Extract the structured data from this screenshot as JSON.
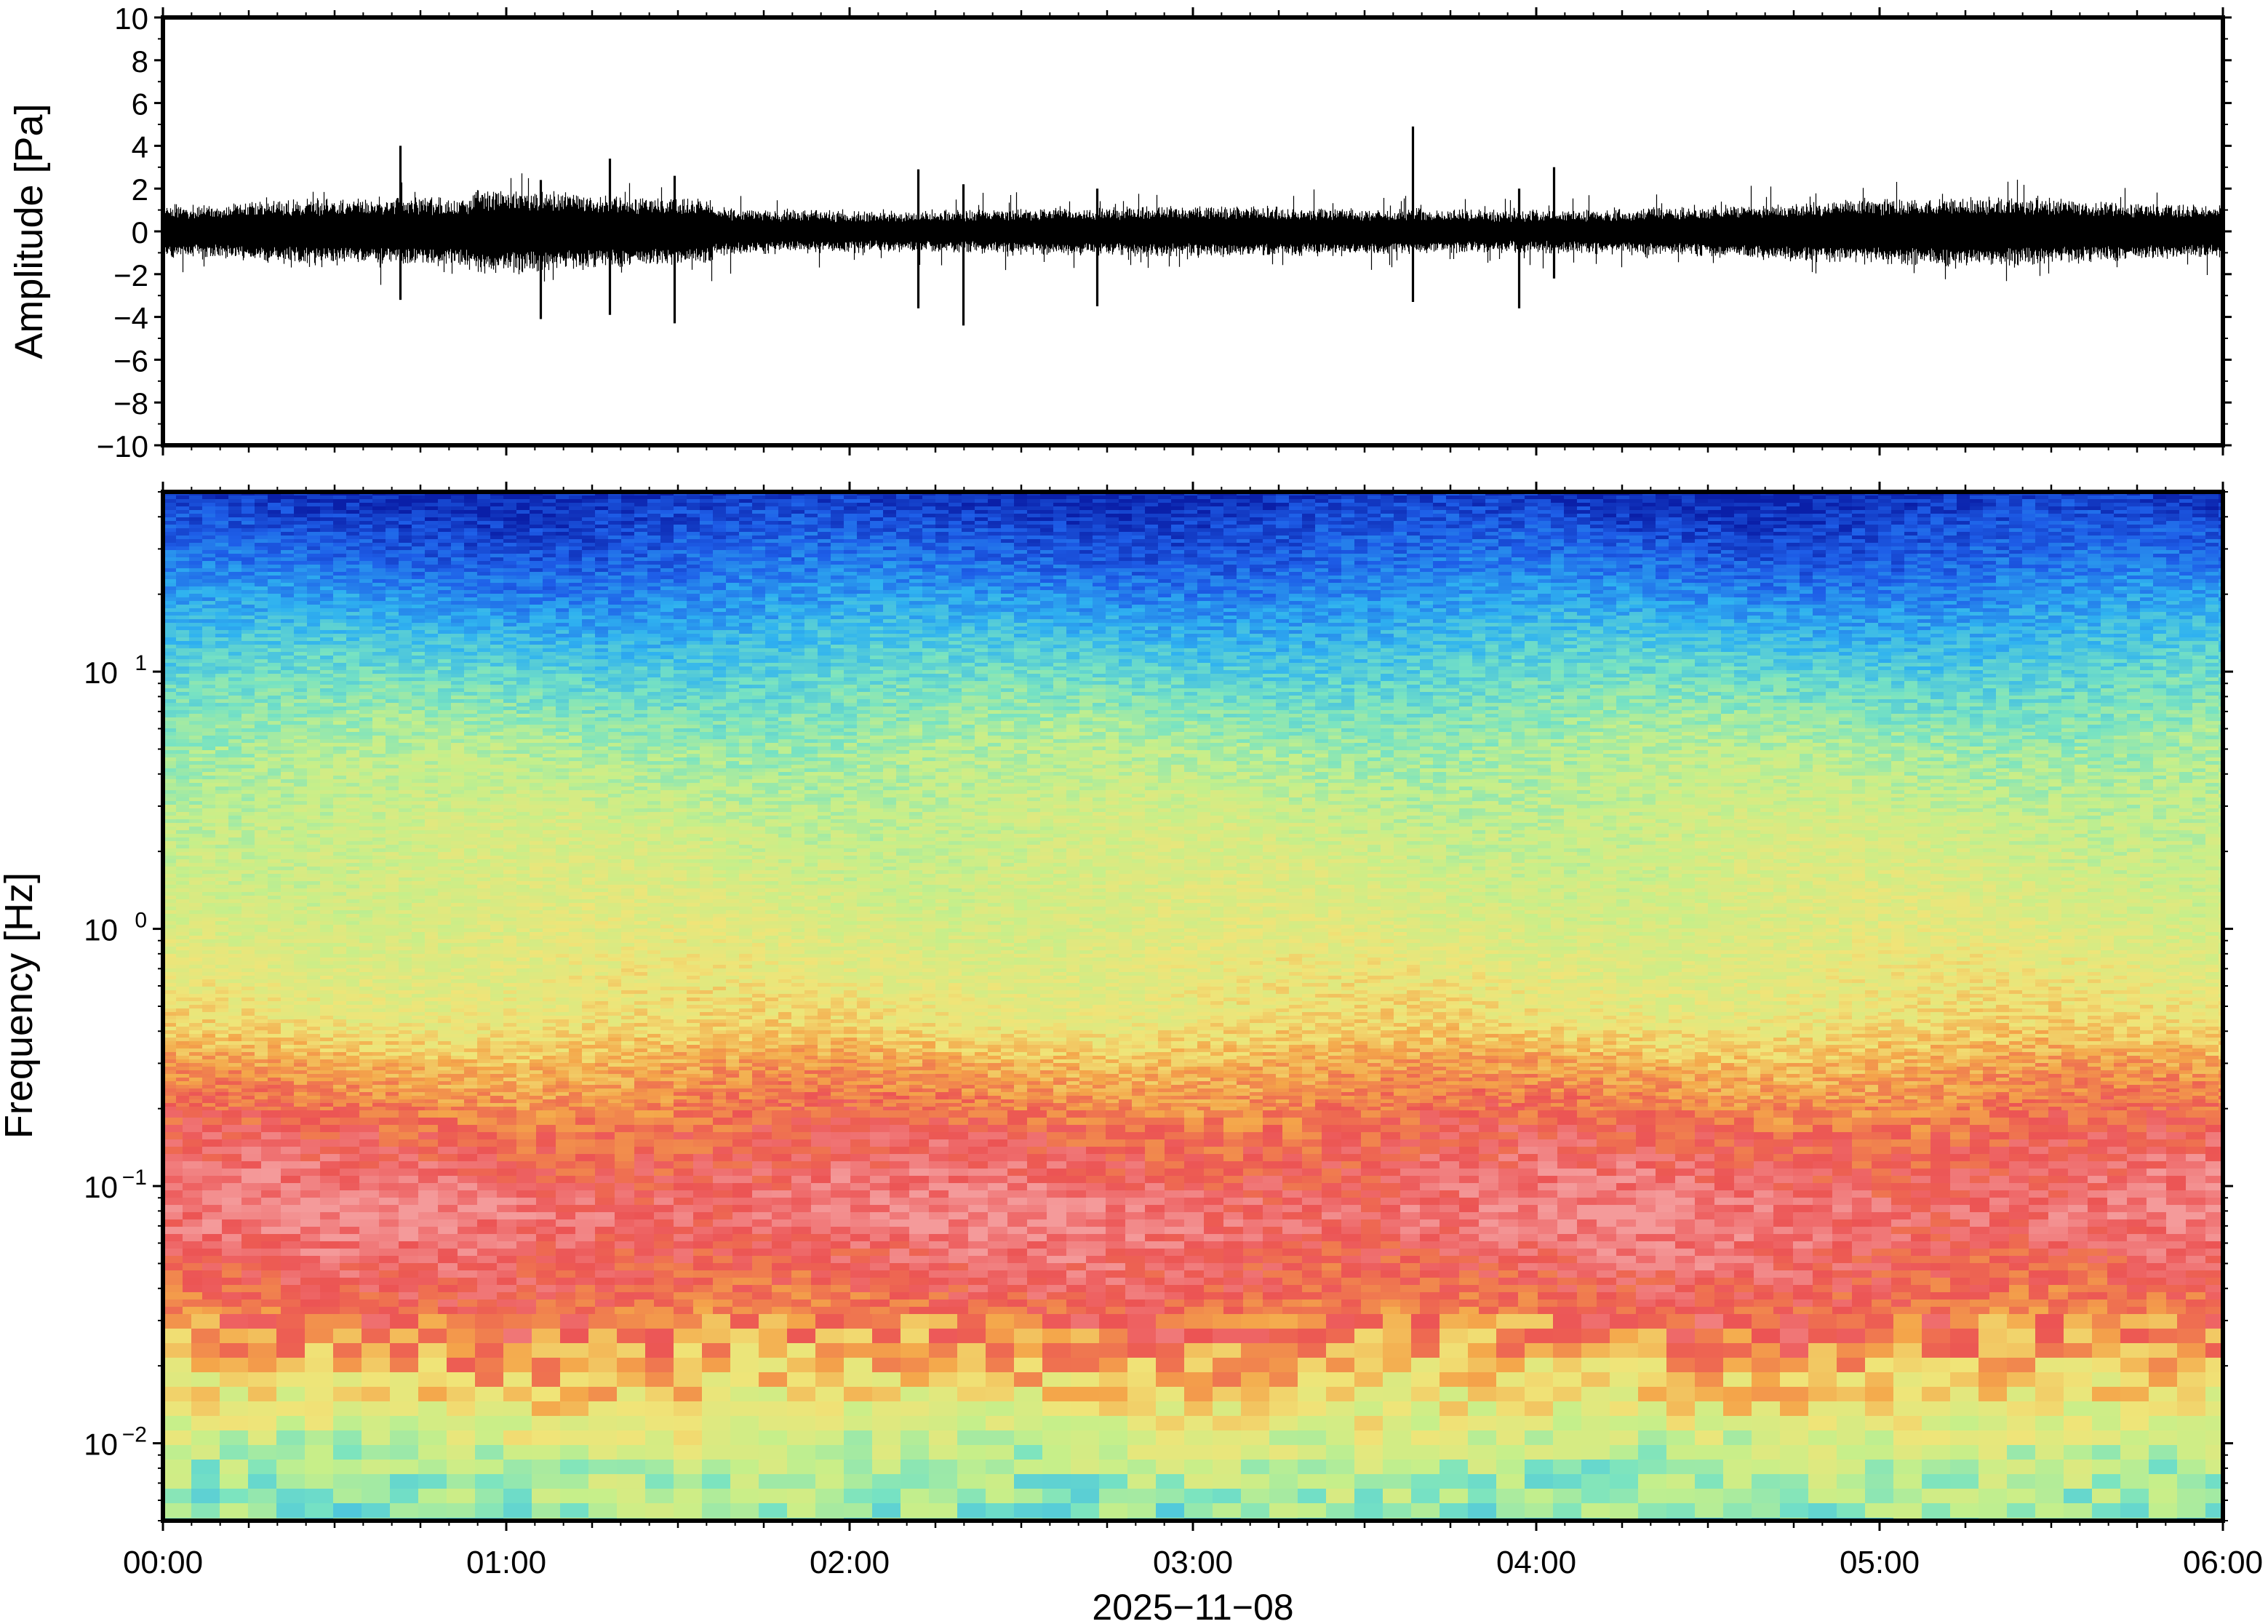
{
  "chart_data": [
    {
      "type": "line",
      "title": "",
      "ylabel": "Amplitude [Pa]",
      "xlabel": "",
      "ylim": [
        -10,
        10
      ],
      "yticks": [
        -10,
        -8,
        -6,
        -4,
        -2,
        0,
        2,
        4,
        6,
        8,
        10
      ],
      "ytick_labels": [
        "−10",
        "−8",
        "−6",
        "−4",
        "−2",
        "0",
        "2",
        "4",
        "6",
        "8",
        "10"
      ],
      "xlim_hours": [
        0,
        6
      ],
      "series": [
        {
          "color": "#000000",
          "description_level": "background noise envelope roughly ±1.0 to ±1.5 Pa",
          "spikes": [
            {
              "t_hours": 0.69,
              "max": 4.0,
              "min": -3.2
            },
            {
              "t_hours": 1.1,
              "max": 2.4,
              "min": -4.1
            },
            {
              "t_hours": 1.3,
              "max": 3.4,
              "min": -3.9
            },
            {
              "t_hours": 1.49,
              "max": 2.6,
              "min": -4.3
            },
            {
              "t_hours": 2.2,
              "max": 2.9,
              "min": -3.6
            },
            {
              "t_hours": 2.33,
              "max": 2.2,
              "min": -4.4
            },
            {
              "t_hours": 2.72,
              "max": 2.0,
              "min": -3.5
            },
            {
              "t_hours": 3.64,
              "max": 4.9,
              "min": -3.3
            },
            {
              "t_hours": 3.95,
              "max": 2.0,
              "min": -3.6
            },
            {
              "t_hours": 4.05,
              "max": 3.0,
              "min": -2.2
            }
          ]
        }
      ]
    },
    {
      "type": "heatmap",
      "title": "",
      "ylabel": "Frequency [Hz]",
      "xlabel": "2025−11−08",
      "yscale": "log",
      "ylim_hz": [
        0.005,
        50
      ],
      "yticks_hz": [
        0.01,
        0.1,
        1,
        10
      ],
      "ytick_base": "10",
      "ytick_exponents": [
        "−2",
        "−1",
        "0",
        "1"
      ],
      "xticks": [
        "00:00",
        "01:00",
        "02:00",
        "03:00",
        "04:00",
        "05:00",
        "06:00"
      ],
      "colormap": [
        "#0a1fa8",
        "#1e5ee8",
        "#2fb2f0",
        "#78e3c2",
        "#c6ef8a",
        "#f0e478",
        "#f4a64a",
        "#ec5454",
        "#f49a9a"
      ],
      "bands": [
        {
          "freq_hz": [
            25,
            50
          ],
          "color": "deep blue"
        },
        {
          "freq_hz": [
            12,
            25
          ],
          "color": "blue / cyan"
        },
        {
          "freq_hz": [
            4,
            12
          ],
          "color": "cyan / teal"
        },
        {
          "freq_hz": [
            0.45,
            4
          ],
          "color": "yellow-green"
        },
        {
          "freq_hz": [
            0.2,
            0.45
          ],
          "color": "orange / red"
        },
        {
          "freq_hz": [
            0.05,
            0.2
          ],
          "color": "red / pink"
        },
        {
          "freq_hz": [
            0.028,
            0.05
          ],
          "color": "red"
        },
        {
          "freq_hz": [
            0.012,
            0.028
          ],
          "color": "orange / yellow"
        },
        {
          "freq_hz": [
            0.005,
            0.012
          ],
          "color": "green / cyan"
        }
      ]
    }
  ]
}
